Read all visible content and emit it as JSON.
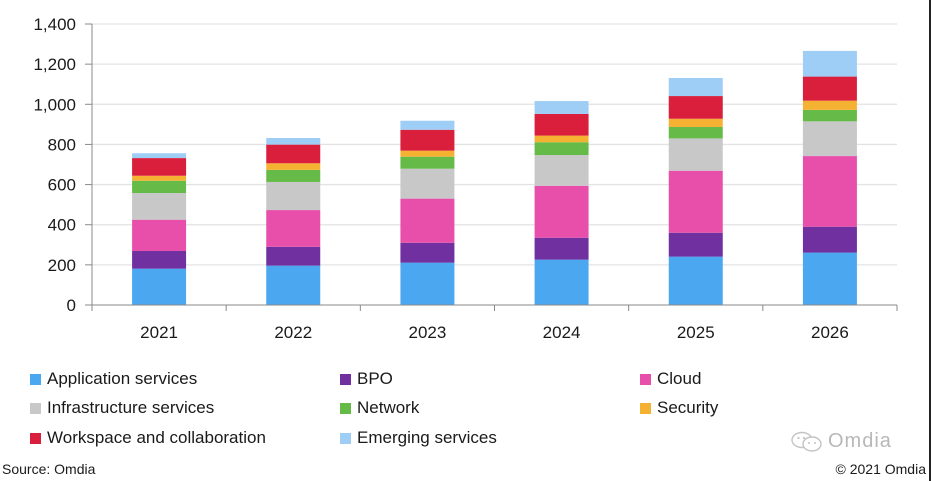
{
  "chart_data": {
    "type": "bar",
    "stacked": true,
    "title": "",
    "xlabel": "",
    "ylabel": "",
    "ylim": [
      0,
      1400
    ],
    "yticks": [
      0,
      200,
      400,
      600,
      800,
      1000,
      1200,
      1400
    ],
    "ytick_labels": [
      "0",
      "200",
      "400",
      "600",
      "800",
      "1,000",
      "1,200",
      "1,400"
    ],
    "grid": true,
    "legend_position": "bottom",
    "categories": [
      "2021",
      "2022",
      "2023",
      "2024",
      "2025",
      "2026"
    ],
    "series": [
      {
        "name": "Application services",
        "color": "#4BA8F0",
        "values": [
          181,
          196,
          211,
          226,
          241,
          261
        ]
      },
      {
        "name": "BPO",
        "color": "#7030A0",
        "values": [
          88,
          94,
          99,
          109,
          119,
          129
        ]
      },
      {
        "name": "Cloud",
        "color": "#E84FAA",
        "values": [
          156,
          183,
          220,
          259,
          309,
          352
        ]
      },
      {
        "name": "Infrastructure services",
        "color": "#C8C8C8",
        "values": [
          133,
          140,
          149,
          153,
          161,
          173
        ]
      },
      {
        "name": "Network",
        "color": "#66BB48",
        "values": [
          61,
          60,
          60,
          64,
          57,
          57
        ]
      },
      {
        "name": "Security",
        "color": "#F5B232",
        "values": [
          25,
          33,
          30,
          33,
          41,
          46
        ]
      },
      {
        "name": "Workspace and collaboration",
        "color": "#DA1F3D",
        "values": [
          88,
          93,
          104,
          108,
          113,
          120
        ]
      },
      {
        "name": "Emerging services",
        "color": "#9ECDF5",
        "values": [
          24,
          33,
          45,
          64,
          90,
          128
        ]
      }
    ]
  },
  "legend_order": [
    0,
    1,
    2,
    3,
    4,
    5,
    6,
    7
  ],
  "footer": {
    "source": "Source: Omdia",
    "copyright": "© 2021 Omdia",
    "watermark": "Omdia"
  }
}
